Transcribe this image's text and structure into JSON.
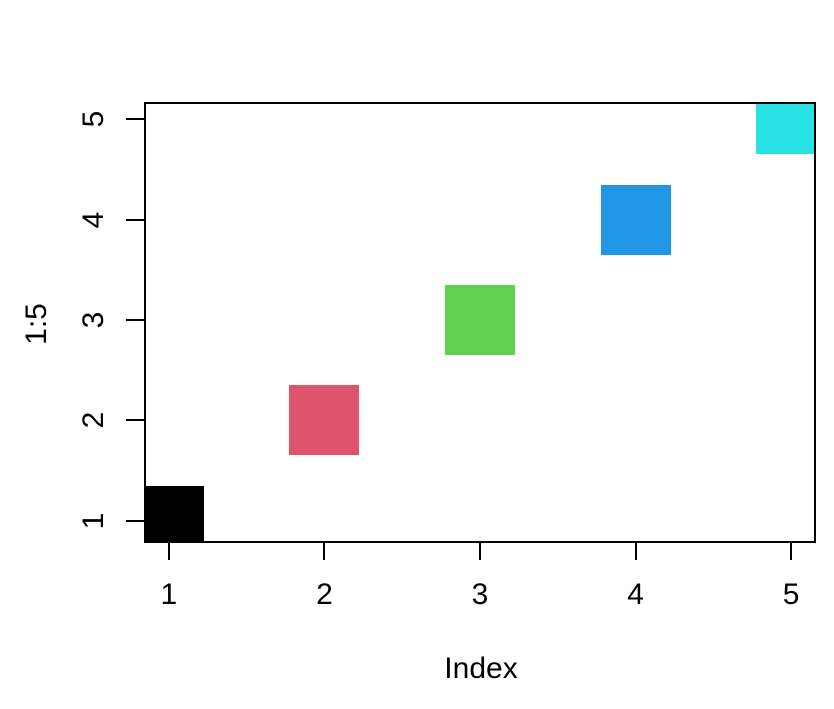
{
  "chart_data": {
    "type": "scatter",
    "title": "",
    "xlabel": "Index",
    "ylabel": "1:5",
    "x": [
      1,
      2,
      3,
      4,
      5
    ],
    "y": [
      1,
      2,
      3,
      4,
      5
    ],
    "point_colors": [
      "#000000",
      "#DF536B",
      "#61D04F",
      "#2297E6",
      "#28E2E5"
    ],
    "marker": "filled-square",
    "marker_size_px": 70,
    "x_ticks": [
      "1",
      "2",
      "3",
      "4",
      "5"
    ],
    "x_tick_values": [
      1,
      2,
      3,
      4,
      5
    ],
    "y_ticks": [
      "1",
      "2",
      "3",
      "4",
      "5"
    ],
    "y_tick_values": [
      1,
      2,
      3,
      4,
      5
    ],
    "xlim": [
      0.84,
      5.16
    ],
    "ylim": [
      0.78,
      5.17
    ],
    "grid": false,
    "background": "#FFFFFF",
    "box_color": "#000000",
    "text_color": "#000000"
  }
}
